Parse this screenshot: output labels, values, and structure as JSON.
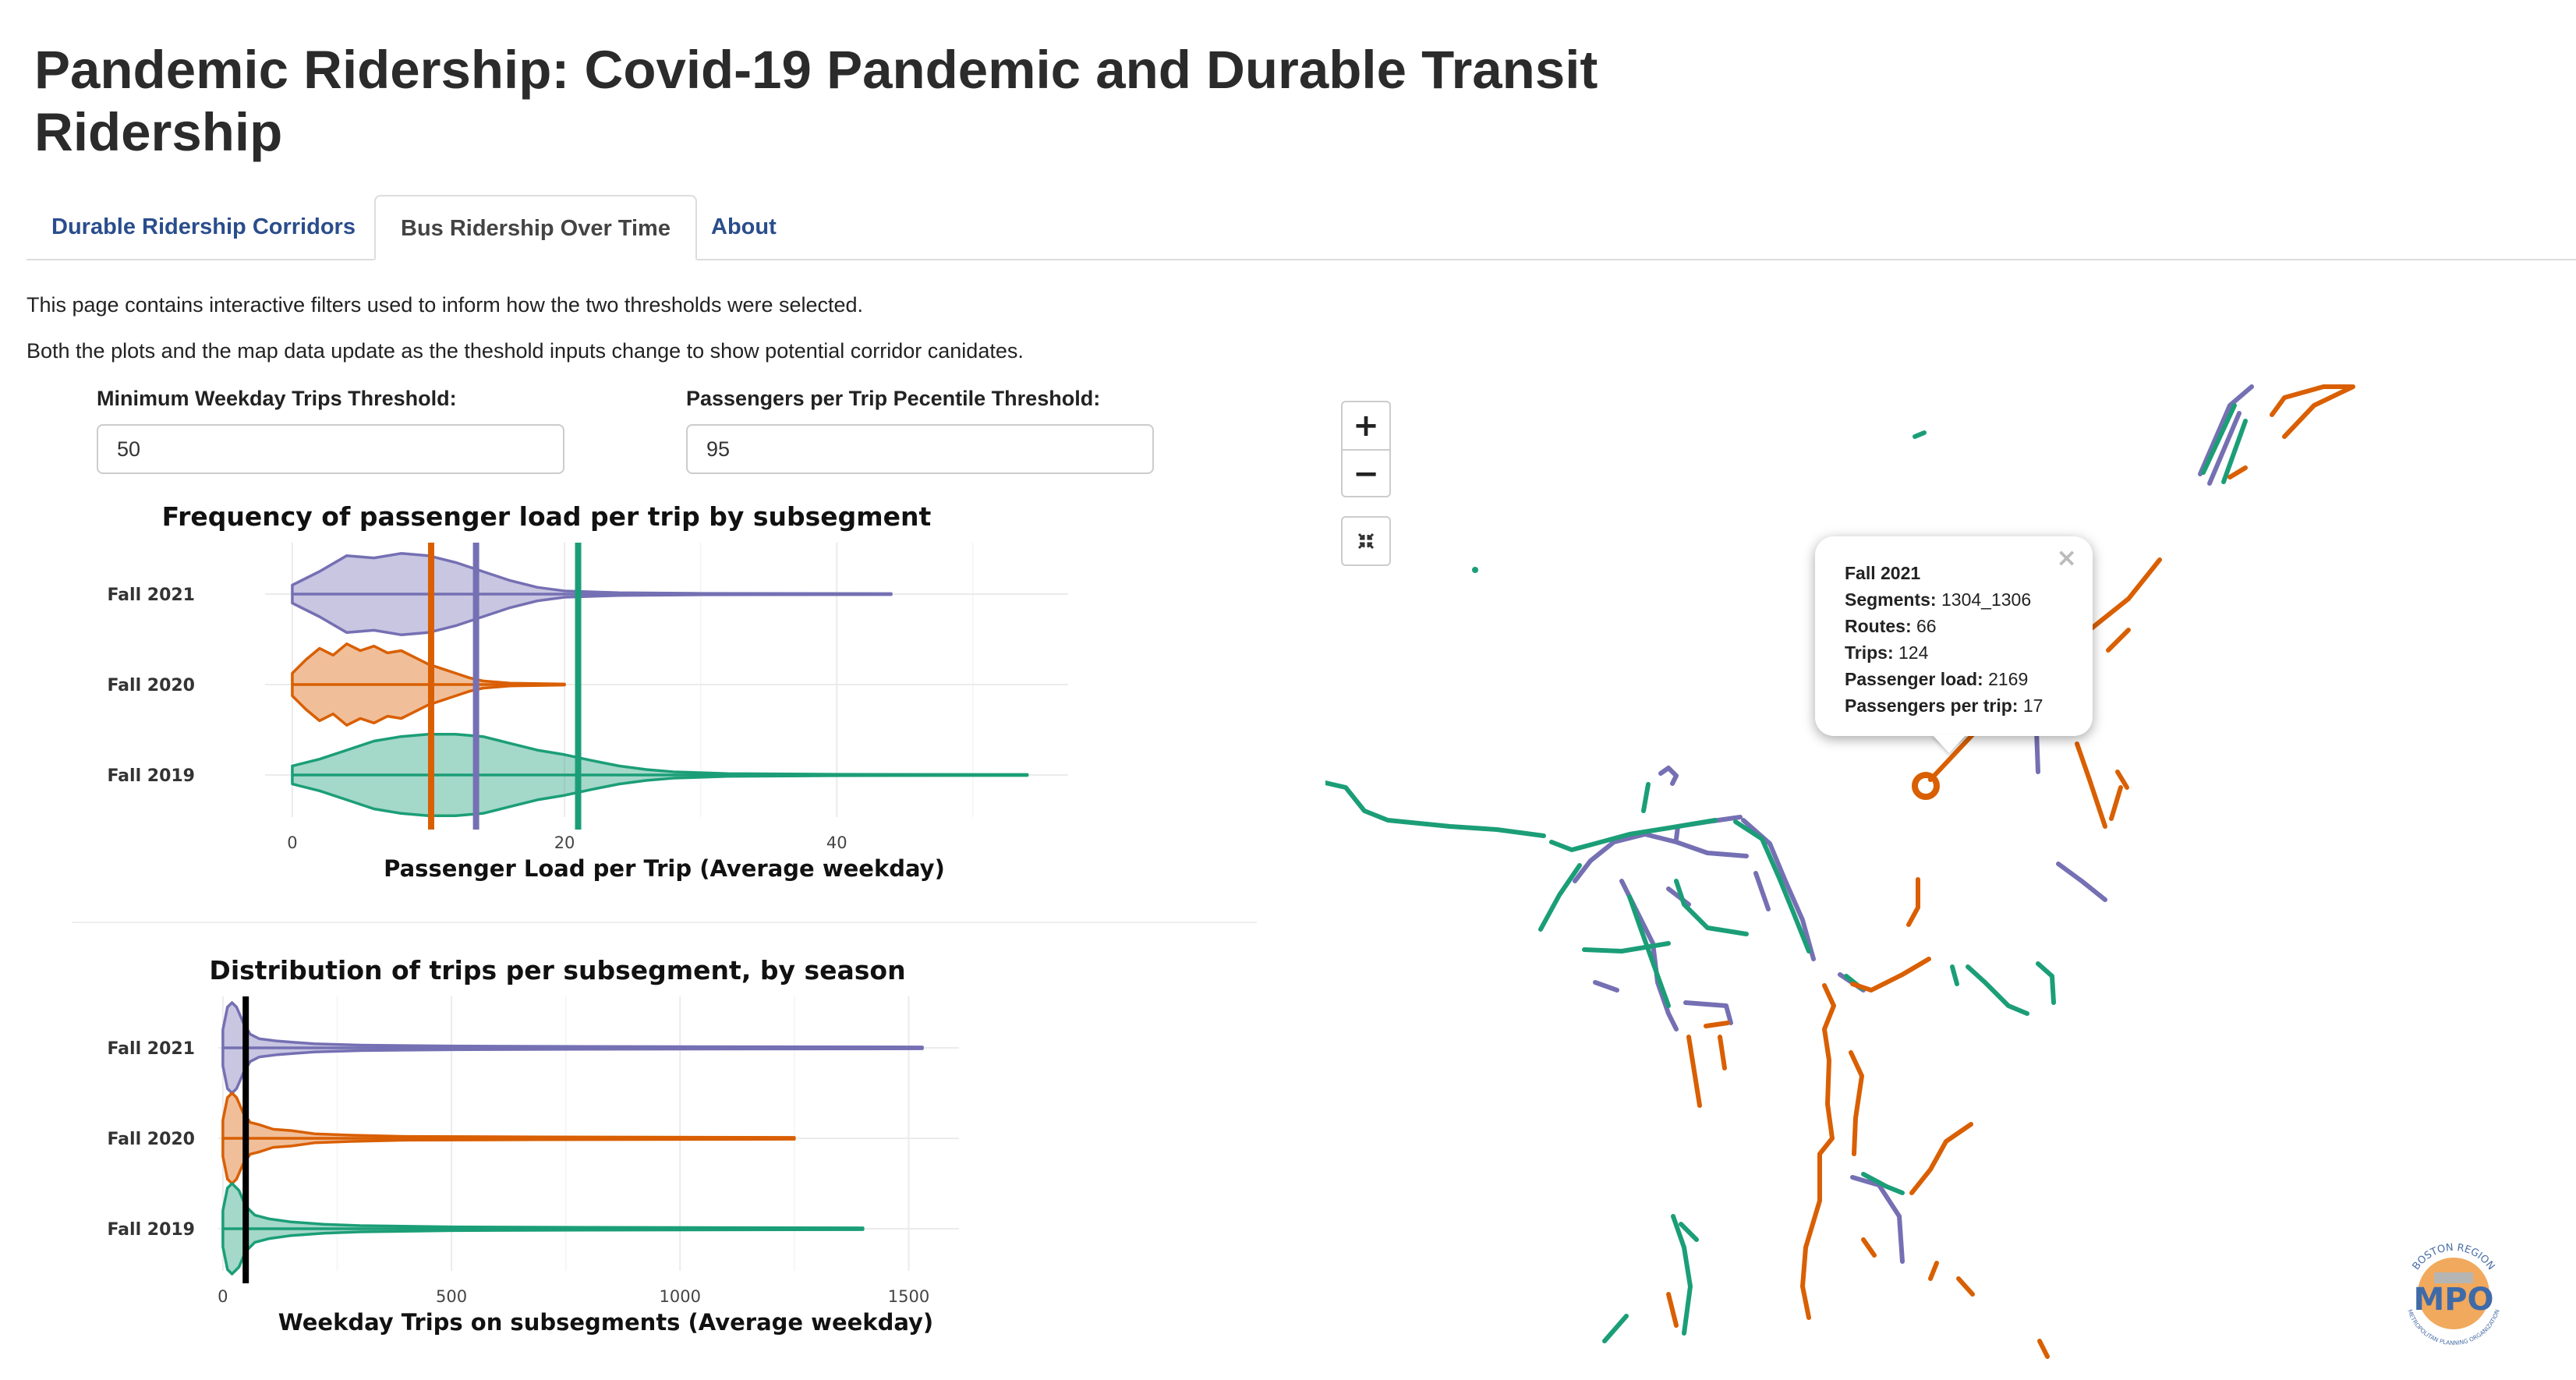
{
  "page_title": "Pandemic Ridership: Covid-19 Pandemic and Durable Transit Ridership",
  "tabs": [
    {
      "label": "Durable Ridership Corridors",
      "active": false
    },
    {
      "label": "Bus Ridership Over Time",
      "active": true
    },
    {
      "label": "About",
      "active": false
    }
  ],
  "intro": [
    "This page contains interactive filters used to inform how the two thresholds were selected.",
    "Both the plots and the map data update as the theshold inputs change to show potential corridor canidates."
  ],
  "filters": {
    "min_trips": {
      "label": "Minimum Weekday Trips Threshold:",
      "value": "50"
    },
    "percentile": {
      "label": "Passengers per Trip Pecentile Threshold:",
      "value": "95"
    }
  },
  "colors": {
    "fall2021": "#7570b3",
    "fall2020": "#d95f02",
    "fall2019": "#1b9e77"
  },
  "chart_data": [
    {
      "type": "violin",
      "title": "Frequency of passenger load per trip by subsegment",
      "xlabel": "Passenger Load per Trip (Average weekday)",
      "xlim": [
        -2,
        57
      ],
      "xticks": [
        0,
        20,
        40
      ],
      "categories": [
        "Fall 2021",
        "Fall 2020",
        "Fall 2019"
      ],
      "series": [
        {
          "name": "Fall 2021",
          "color": "#7570b3",
          "min": 0,
          "max": 44,
          "density": [
            [
              0,
              0.2
            ],
            [
              2,
              0.5
            ],
            [
              4,
              0.85
            ],
            [
              6,
              0.8
            ],
            [
              8,
              0.9
            ],
            [
              10,
              0.85
            ],
            [
              12,
              0.7
            ],
            [
              14,
              0.5
            ],
            [
              16,
              0.3
            ],
            [
              18,
              0.15
            ],
            [
              20,
              0.07
            ],
            [
              24,
              0.03
            ],
            [
              30,
              0.015
            ],
            [
              44,
              0.01
            ]
          ],
          "threshold": 13.5
        },
        {
          "name": "Fall 2020",
          "color": "#d95f02",
          "min": 0,
          "max": 20,
          "density": [
            [
              0,
              0.25
            ],
            [
              1,
              0.55
            ],
            [
              2,
              0.8
            ],
            [
              3,
              0.65
            ],
            [
              4,
              0.9
            ],
            [
              5,
              0.75
            ],
            [
              6,
              0.85
            ],
            [
              7,
              0.7
            ],
            [
              8,
              0.75
            ],
            [
              9,
              0.6
            ],
            [
              10,
              0.45
            ],
            [
              11,
              0.35
            ],
            [
              12,
              0.25
            ],
            [
              13,
              0.15
            ],
            [
              14,
              0.08
            ],
            [
              16,
              0.03
            ],
            [
              20,
              0.01
            ]
          ],
          "threshold": 10.2
        },
        {
          "name": "Fall 2019",
          "color": "#1b9e77",
          "min": 0,
          "max": 54,
          "density": [
            [
              0,
              0.2
            ],
            [
              2,
              0.35
            ],
            [
              4,
              0.55
            ],
            [
              6,
              0.75
            ],
            [
              8,
              0.85
            ],
            [
              10,
              0.9
            ],
            [
              12,
              0.9
            ],
            [
              14,
              0.85
            ],
            [
              16,
              0.7
            ],
            [
              18,
              0.55
            ],
            [
              20,
              0.45
            ],
            [
              22,
              0.32
            ],
            [
              24,
              0.2
            ],
            [
              26,
              0.12
            ],
            [
              28,
              0.07
            ],
            [
              32,
              0.03
            ],
            [
              40,
              0.015
            ],
            [
              54,
              0.01
            ]
          ],
          "threshold": 21
        }
      ]
    },
    {
      "type": "violin",
      "title": "Distribution of trips per subsegment, by season",
      "xlabel": "Weekday Trips on subsegments (Average weekday)",
      "xlim": [
        -10,
        1610
      ],
      "xticks": [
        0,
        500,
        1000,
        1500
      ],
      "categories": [
        "Fall 2021",
        "Fall 2020",
        "Fall 2019"
      ],
      "threshold": 50,
      "series": [
        {
          "name": "Fall 2021",
          "color": "#7570b3",
          "min": 0,
          "max": 1530,
          "density": [
            [
              0,
              0.4
            ],
            [
              10,
              0.9
            ],
            [
              20,
              1
            ],
            [
              30,
              0.9
            ],
            [
              45,
              0.55
            ],
            [
              60,
              0.3
            ],
            [
              80,
              0.2
            ],
            [
              120,
              0.15
            ],
            [
              200,
              0.09
            ],
            [
              300,
              0.06
            ],
            [
              500,
              0.04
            ],
            [
              800,
              0.03
            ],
            [
              1530,
              0.02
            ]
          ]
        },
        {
          "name": "Fall 2020",
          "color": "#d95f02",
          "min": 0,
          "max": 1250,
          "density": [
            [
              0,
              0.4
            ],
            [
              10,
              0.9
            ],
            [
              20,
              1
            ],
            [
              30,
              0.9
            ],
            [
              45,
              0.55
            ],
            [
              60,
              0.35
            ],
            [
              80,
              0.3
            ],
            [
              110,
              0.2
            ],
            [
              150,
              0.17
            ],
            [
              200,
              0.1
            ],
            [
              280,
              0.07
            ],
            [
              400,
              0.04
            ],
            [
              700,
              0.03
            ],
            [
              1250,
              0.02
            ]
          ]
        },
        {
          "name": "Fall 2019",
          "color": "#1b9e77",
          "min": 0,
          "max": 1400,
          "density": [
            [
              0,
              0.4
            ],
            [
              10,
              0.9
            ],
            [
              20,
              1
            ],
            [
              35,
              0.85
            ],
            [
              50,
              0.5
            ],
            [
              70,
              0.3
            ],
            [
              100,
              0.22
            ],
            [
              150,
              0.15
            ],
            [
              220,
              0.1
            ],
            [
              300,
              0.07
            ],
            [
              500,
              0.04
            ],
            [
              800,
              0.03
            ],
            [
              1400,
              0.02
            ]
          ]
        }
      ]
    }
  ],
  "map": {
    "zoom_in": "+",
    "zoom_out": "−",
    "fullscreen_icon": "fullscreen-collapse-icon",
    "popup": {
      "season": "Fall 2021",
      "fields": [
        {
          "label": "Segments:",
          "value": "1304_1306"
        },
        {
          "label": "Routes:",
          "value": "66"
        },
        {
          "label": "Trips:",
          "value": "124"
        },
        {
          "label": "Passenger load:",
          "value": "2169"
        },
        {
          "label": "Passengers per trip:",
          "value": "17"
        }
      ],
      "close": "×"
    },
    "logo": {
      "top_text": "BOSTON REGION",
      "main_text": "MPO",
      "bottom_text": "METROPOLITAN PLANNING ORGANIZATION"
    }
  }
}
